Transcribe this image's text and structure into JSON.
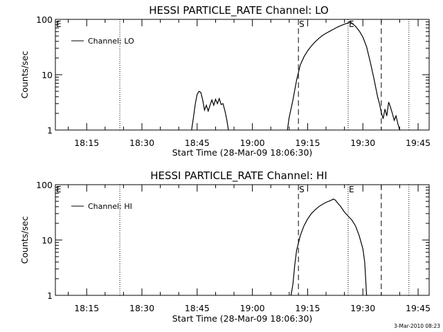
{
  "footer_stamp": "3-Mar-2010 08:23",
  "chart_data": [
    {
      "type": "line",
      "title": "HESSI PARTICLE_RATE Channel: LO",
      "xlabel": "Start Time (28-Mar-09 18:06:30)",
      "ylabel": "Counts/sec",
      "y_scale": "log",
      "ylim": [
        1,
        100
      ],
      "y_ticks": [
        "1",
        "10",
        "100"
      ],
      "xlim": [
        "18:06:30",
        "19:48:00"
      ],
      "x_ticks": [
        "18:15",
        "18:30",
        "18:45",
        "19:00",
        "19:15",
        "19:30",
        "19:45"
      ],
      "legend": {
        "position": "top-left",
        "entries": [
          "Channel: LO"
        ]
      },
      "markers": [
        {
          "label": "E",
          "time": "18:06:30",
          "style": "none"
        },
        {
          "label": "",
          "time": "18:24:00",
          "style": "dotted"
        },
        {
          "label": "S",
          "time": "19:12:30",
          "style": "dashed"
        },
        {
          "label": "E",
          "time": "19:26:00",
          "style": "dotted"
        },
        {
          "label": "",
          "time": "19:35:00",
          "style": "dashed"
        },
        {
          "label": "",
          "time": "19:42:30",
          "style": "dotted"
        }
      ],
      "series": [
        {
          "name": "Channel: LO",
          "segments": [
            [
              [
                "18:43:30",
                1.0
              ],
              [
                "18:44:00",
                1.7
              ],
              [
                "18:44:30",
                3.0
              ],
              [
                "18:45:00",
                4.4
              ],
              [
                "18:45:30",
                5.0
              ],
              [
                "18:46:00",
                4.8
              ],
              [
                "18:46:30",
                3.5
              ],
              [
                "18:47:00",
                2.3
              ],
              [
                "18:47:30",
                2.8
              ],
              [
                "18:48:00",
                2.2
              ],
              [
                "18:48:30",
                2.8
              ],
              [
                "18:49:00",
                3.5
              ],
              [
                "18:49:30",
                2.8
              ],
              [
                "18:50:00",
                3.6
              ],
              [
                "18:50:30",
                3.0
              ],
              [
                "18:51:00",
                3.7
              ],
              [
                "18:51:30",
                2.9
              ],
              [
                "18:52:00",
                3.0
              ],
              [
                "18:52:30",
                2.3
              ],
              [
                "18:53:00",
                1.6
              ],
              [
                "18:53:30",
                1.0
              ]
            ],
            [
              [
                "19:09:30",
                1.0
              ],
              [
                "19:10:00",
                1.7
              ],
              [
                "19:11:00",
                3.5
              ],
              [
                "19:12:00",
                8.0
              ],
              [
                "19:13:00",
                15.0
              ],
              [
                "19:14:00",
                21.0
              ],
              [
                "19:15:00",
                27.0
              ],
              [
                "19:16:00",
                33.0
              ],
              [
                "19:17:00",
                39.0
              ],
              [
                "19:18:00",
                45.0
              ],
              [
                "19:19:00",
                51.0
              ],
              [
                "19:20:00",
                56.0
              ],
              [
                "19:21:00",
                61.0
              ],
              [
                "19:22:00",
                66.0
              ],
              [
                "19:23:00",
                72.0
              ],
              [
                "19:24:00",
                77.0
              ],
              [
                "19:25:00",
                82.0
              ],
              [
                "19:26:00",
                86.0
              ],
              [
                "19:26:30",
                92.0
              ],
              [
                "19:27:00",
                85.0
              ],
              [
                "19:28:00",
                75.0
              ],
              [
                "19:29:00",
                62.0
              ],
              [
                "19:30:00",
                48.0
              ],
              [
                "19:31:00",
                32.0
              ],
              [
                "19:32:00",
                17.0
              ],
              [
                "19:33:00",
                8.5
              ],
              [
                "19:34:00",
                4.0
              ],
              [
                "19:34:30",
                3.0
              ],
              [
                "19:35:00",
                2.1
              ],
              [
                "19:35:30",
                1.6
              ],
              [
                "19:36:00",
                2.4
              ],
              [
                "19:36:30",
                1.8
              ],
              [
                "19:37:00",
                3.2
              ],
              [
                "19:37:30",
                2.6
              ],
              [
                "19:38:00",
                2.0
              ],
              [
                "19:38:30",
                1.5
              ],
              [
                "19:39:00",
                1.8
              ],
              [
                "19:39:30",
                1.3
              ],
              [
                "19:40:00",
                1.0
              ]
            ]
          ]
        }
      ]
    },
    {
      "type": "line",
      "title": "HESSI PARTICLE_RATE Channel: HI",
      "xlabel": "Start Time (28-Mar-09 18:06:30)",
      "ylabel": "Counts/sec",
      "y_scale": "log",
      "ylim": [
        1,
        100
      ],
      "y_ticks": [
        "1",
        "10",
        "100"
      ],
      "xlim": [
        "18:06:30",
        "19:48:00"
      ],
      "x_ticks": [
        "18:15",
        "18:30",
        "18:45",
        "19:00",
        "19:15",
        "19:30",
        "19:45"
      ],
      "legend": {
        "position": "top-left",
        "entries": [
          "Channel: HI"
        ]
      },
      "markers": [
        {
          "label": "E",
          "time": "18:06:30",
          "style": "none"
        },
        {
          "label": "",
          "time": "18:24:00",
          "style": "dotted"
        },
        {
          "label": "S",
          "time": "19:12:30",
          "style": "dashed"
        },
        {
          "label": "E",
          "time": "19:26:00",
          "style": "dotted"
        },
        {
          "label": "",
          "time": "19:35:00",
          "style": "dashed"
        },
        {
          "label": "",
          "time": "19:42:30",
          "style": "dotted"
        }
      ],
      "series": [
        {
          "name": "Channel: HI",
          "segments": [
            [
              [
                "19:10:30",
                1.0
              ],
              [
                "19:11:00",
                1.6
              ],
              [
                "19:11:30",
                3.5
              ],
              [
                "19:12:00",
                6.5
              ],
              [
                "19:13:00",
                12.0
              ],
              [
                "19:14:00",
                18.0
              ],
              [
                "19:15:00",
                24.0
              ],
              [
                "19:16:00",
                30.0
              ],
              [
                "19:17:00",
                35.0
              ],
              [
                "19:18:00",
                40.0
              ],
              [
                "19:19:00",
                44.0
              ],
              [
                "19:20:00",
                48.0
              ],
              [
                "19:21:00",
                51.0
              ],
              [
                "19:22:00",
                55.0
              ],
              [
                "19:22:30",
                53.0
              ],
              [
                "19:23:00",
                48.0
              ],
              [
                "19:24:00",
                40.0
              ],
              [
                "19:25:00",
                32.0
              ],
              [
                "19:26:00",
                27.0
              ],
              [
                "19:27:00",
                23.0
              ],
              [
                "19:28:00",
                18.0
              ],
              [
                "19:29:00",
                12.0
              ],
              [
                "19:30:00",
                7.0
              ],
              [
                "19:30:30",
                4.0
              ],
              [
                "19:31:00",
                1.0
              ]
            ]
          ]
        }
      ]
    }
  ]
}
